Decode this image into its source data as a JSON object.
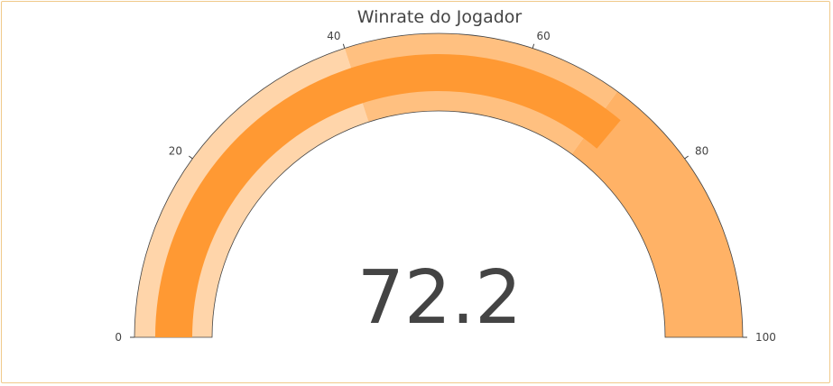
{
  "chart_data": {
    "type": "gauge",
    "title": "Winrate do Jogador",
    "value": 72.2,
    "value_label": "72.2",
    "range": [
      0,
      100
    ],
    "ticks": [
      {
        "value": 0,
        "label": "0"
      },
      {
        "value": 20,
        "label": "20"
      },
      {
        "value": 40,
        "label": "40"
      },
      {
        "value": 60,
        "label": "60"
      },
      {
        "value": 80,
        "label": "80"
      },
      {
        "value": 100,
        "label": "100"
      }
    ],
    "steps": [
      {
        "range": [
          0,
          40
        ],
        "color": "#ffd5aa"
      },
      {
        "range": [
          40,
          70
        ],
        "color": "#ffc080"
      },
      {
        "range": [
          70,
          100
        ],
        "color": "#ffb266"
      }
    ],
    "bar_color": "#ff9933"
  }
}
